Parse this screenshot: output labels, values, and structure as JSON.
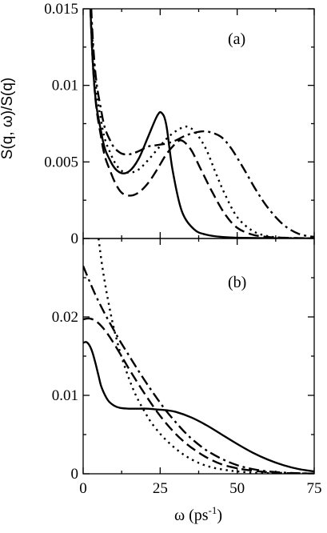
{
  "chart_data": [
    {
      "panel_label": "(a)",
      "type": "line",
      "ylabel": "S(q, ω)/S(q)",
      "xlim": [
        0,
        75
      ],
      "ylim": [
        0,
        0.015
      ],
      "x_ticks": [],
      "y_ticks": [
        0,
        0.005,
        0.01,
        0.015
      ],
      "y_tick_labels": [
        "0",
        "0.005",
        "0.01",
        "0.015"
      ],
      "series": [
        {
          "style": "solid",
          "x": [
            0,
            3,
            6,
            9,
            12,
            15,
            18,
            21,
            24,
            25.5,
            27,
            29,
            32,
            36,
            40,
            45,
            50,
            60,
            70,
            75
          ],
          "y": [
            0.03,
            0.012,
            0.0068,
            0.005,
            0.0043,
            0.0044,
            0.0052,
            0.0066,
            0.008,
            0.0082,
            0.0074,
            0.0045,
            0.0018,
            0.0006,
            0.00025,
            0.0001,
            5e-05,
            2e-05,
            1e-05,
            1e-05
          ]
        },
        {
          "style": "dashed",
          "x": [
            0,
            3,
            6,
            9,
            12,
            15,
            18,
            21,
            24,
            27,
            30,
            32,
            35,
            38,
            42,
            46,
            50,
            55,
            60,
            65,
            75
          ],
          "y": [
            0.03,
            0.012,
            0.0064,
            0.0043,
            0.0031,
            0.0028,
            0.003,
            0.0036,
            0.0045,
            0.0055,
            0.0062,
            0.0064,
            0.0058,
            0.0046,
            0.003,
            0.0016,
            0.0007,
            0.00025,
            0.0001,
            5e-05,
            1e-05
          ]
        },
        {
          "style": "dotted",
          "x": [
            0,
            3,
            6,
            9,
            12,
            15,
            18,
            21,
            24,
            27,
            30,
            33,
            35,
            37,
            40,
            43,
            46,
            50,
            55,
            60,
            65,
            70,
            75
          ],
          "y": [
            0.03,
            0.013,
            0.0075,
            0.0055,
            0.0045,
            0.0043,
            0.0045,
            0.0051,
            0.0058,
            0.0065,
            0.007,
            0.0073,
            0.0072,
            0.0068,
            0.0058,
            0.0043,
            0.0029,
            0.0014,
            0.0005,
            0.00015,
            5e-05,
            2e-05,
            1e-05
          ]
        },
        {
          "style": "dash-dot",
          "x": [
            0,
            3,
            6,
            9,
            12,
            15,
            18,
            21,
            24,
            27,
            30,
            33,
            36,
            39,
            42,
            45,
            48,
            52,
            56,
            60,
            65,
            70,
            75
          ],
          "y": [
            0.03,
            0.0135,
            0.0082,
            0.0063,
            0.0056,
            0.0055,
            0.0057,
            0.006,
            0.0061,
            0.0062,
            0.0064,
            0.0067,
            0.0069,
            0.007,
            0.0069,
            0.0066,
            0.0059,
            0.0046,
            0.0032,
            0.002,
            0.0009,
            0.0003,
            0.0001
          ]
        }
      ]
    },
    {
      "panel_label": "(b)",
      "type": "line",
      "xlabel": "ω  (ps",
      "xlabel_sup": "-1",
      "xlabel_close": ")",
      "xlim": [
        0,
        75
      ],
      "ylim": [
        0,
        0.03
      ],
      "x_ticks": [
        0,
        25,
        50,
        75
      ],
      "x_tick_labels": [
        "0",
        "25",
        "50",
        "75"
      ],
      "y_ticks": [
        0,
        0.01,
        0.02
      ],
      "y_tick_labels": [
        "0",
        "0.01",
        "0.02"
      ],
      "series": [
        {
          "style": "solid",
          "x": [
            0,
            1,
            2,
            3,
            4,
            5,
            6,
            8,
            10,
            12,
            15,
            18,
            21,
            24,
            27,
            30,
            35,
            40,
            45,
            50,
            55,
            60,
            65,
            70,
            75
          ],
          "y": [
            0.0167,
            0.0168,
            0.0164,
            0.0155,
            0.0141,
            0.0125,
            0.011,
            0.0094,
            0.0087,
            0.0084,
            0.0083,
            0.0083,
            0.0083,
            0.0082,
            0.0081,
            0.0079,
            0.0072,
            0.0062,
            0.005,
            0.0038,
            0.0027,
            0.0018,
            0.0011,
            0.0006,
            0.0003
          ]
        },
        {
          "style": "dashed",
          "x": [
            0,
            2,
            4,
            6,
            8,
            10,
            12,
            15,
            18,
            21,
            24,
            27,
            30,
            33,
            36,
            40,
            45,
            50,
            55,
            60,
            65,
            70,
            75
          ],
          "y": [
            0.0197,
            0.0198,
            0.0195,
            0.0188,
            0.0178,
            0.0166,
            0.0153,
            0.0133,
            0.0114,
            0.0096,
            0.0079,
            0.0064,
            0.0051,
            0.004,
            0.0031,
            0.0021,
            0.0012,
            0.0007,
            0.0004,
            0.0002,
            0.0001,
            5e-05,
            2e-05
          ]
        },
        {
          "style": "dotted",
          "x": [
            5,
            6,
            7,
            8,
            9,
            10,
            12,
            14,
            16,
            18,
            20,
            22,
            25,
            28,
            31,
            34,
            38,
            42,
            46,
            50,
            55,
            60,
            65,
            70,
            75
          ],
          "y": [
            0.03,
            0.027,
            0.0245,
            0.0223,
            0.0203,
            0.0185,
            0.0155,
            0.0131,
            0.011,
            0.0093,
            0.0079,
            0.0066,
            0.0051,
            0.0039,
            0.0029,
            0.0021,
            0.0013,
            0.0008,
            0.0005,
            0.0003,
            0.00015,
            8e-05,
            4e-05,
            2e-05,
            1e-05
          ]
        },
        {
          "style": "dash-dot",
          "x": [
            0,
            2,
            4,
            6,
            8,
            10,
            12,
            15,
            18,
            21,
            24,
            27,
            30,
            33,
            36,
            40,
            45,
            50,
            55,
            60,
            65,
            70,
            75
          ],
          "y": [
            0.0265,
            0.0246,
            0.0228,
            0.0212,
            0.0197,
            0.0183,
            0.0169,
            0.015,
            0.0131,
            0.0113,
            0.0096,
            0.008,
            0.0066,
            0.0053,
            0.0042,
            0.003,
            0.0019,
            0.0011,
            0.0006,
            0.0003,
            0.00015,
            7e-05,
            3e-05
          ]
        }
      ]
    }
  ]
}
